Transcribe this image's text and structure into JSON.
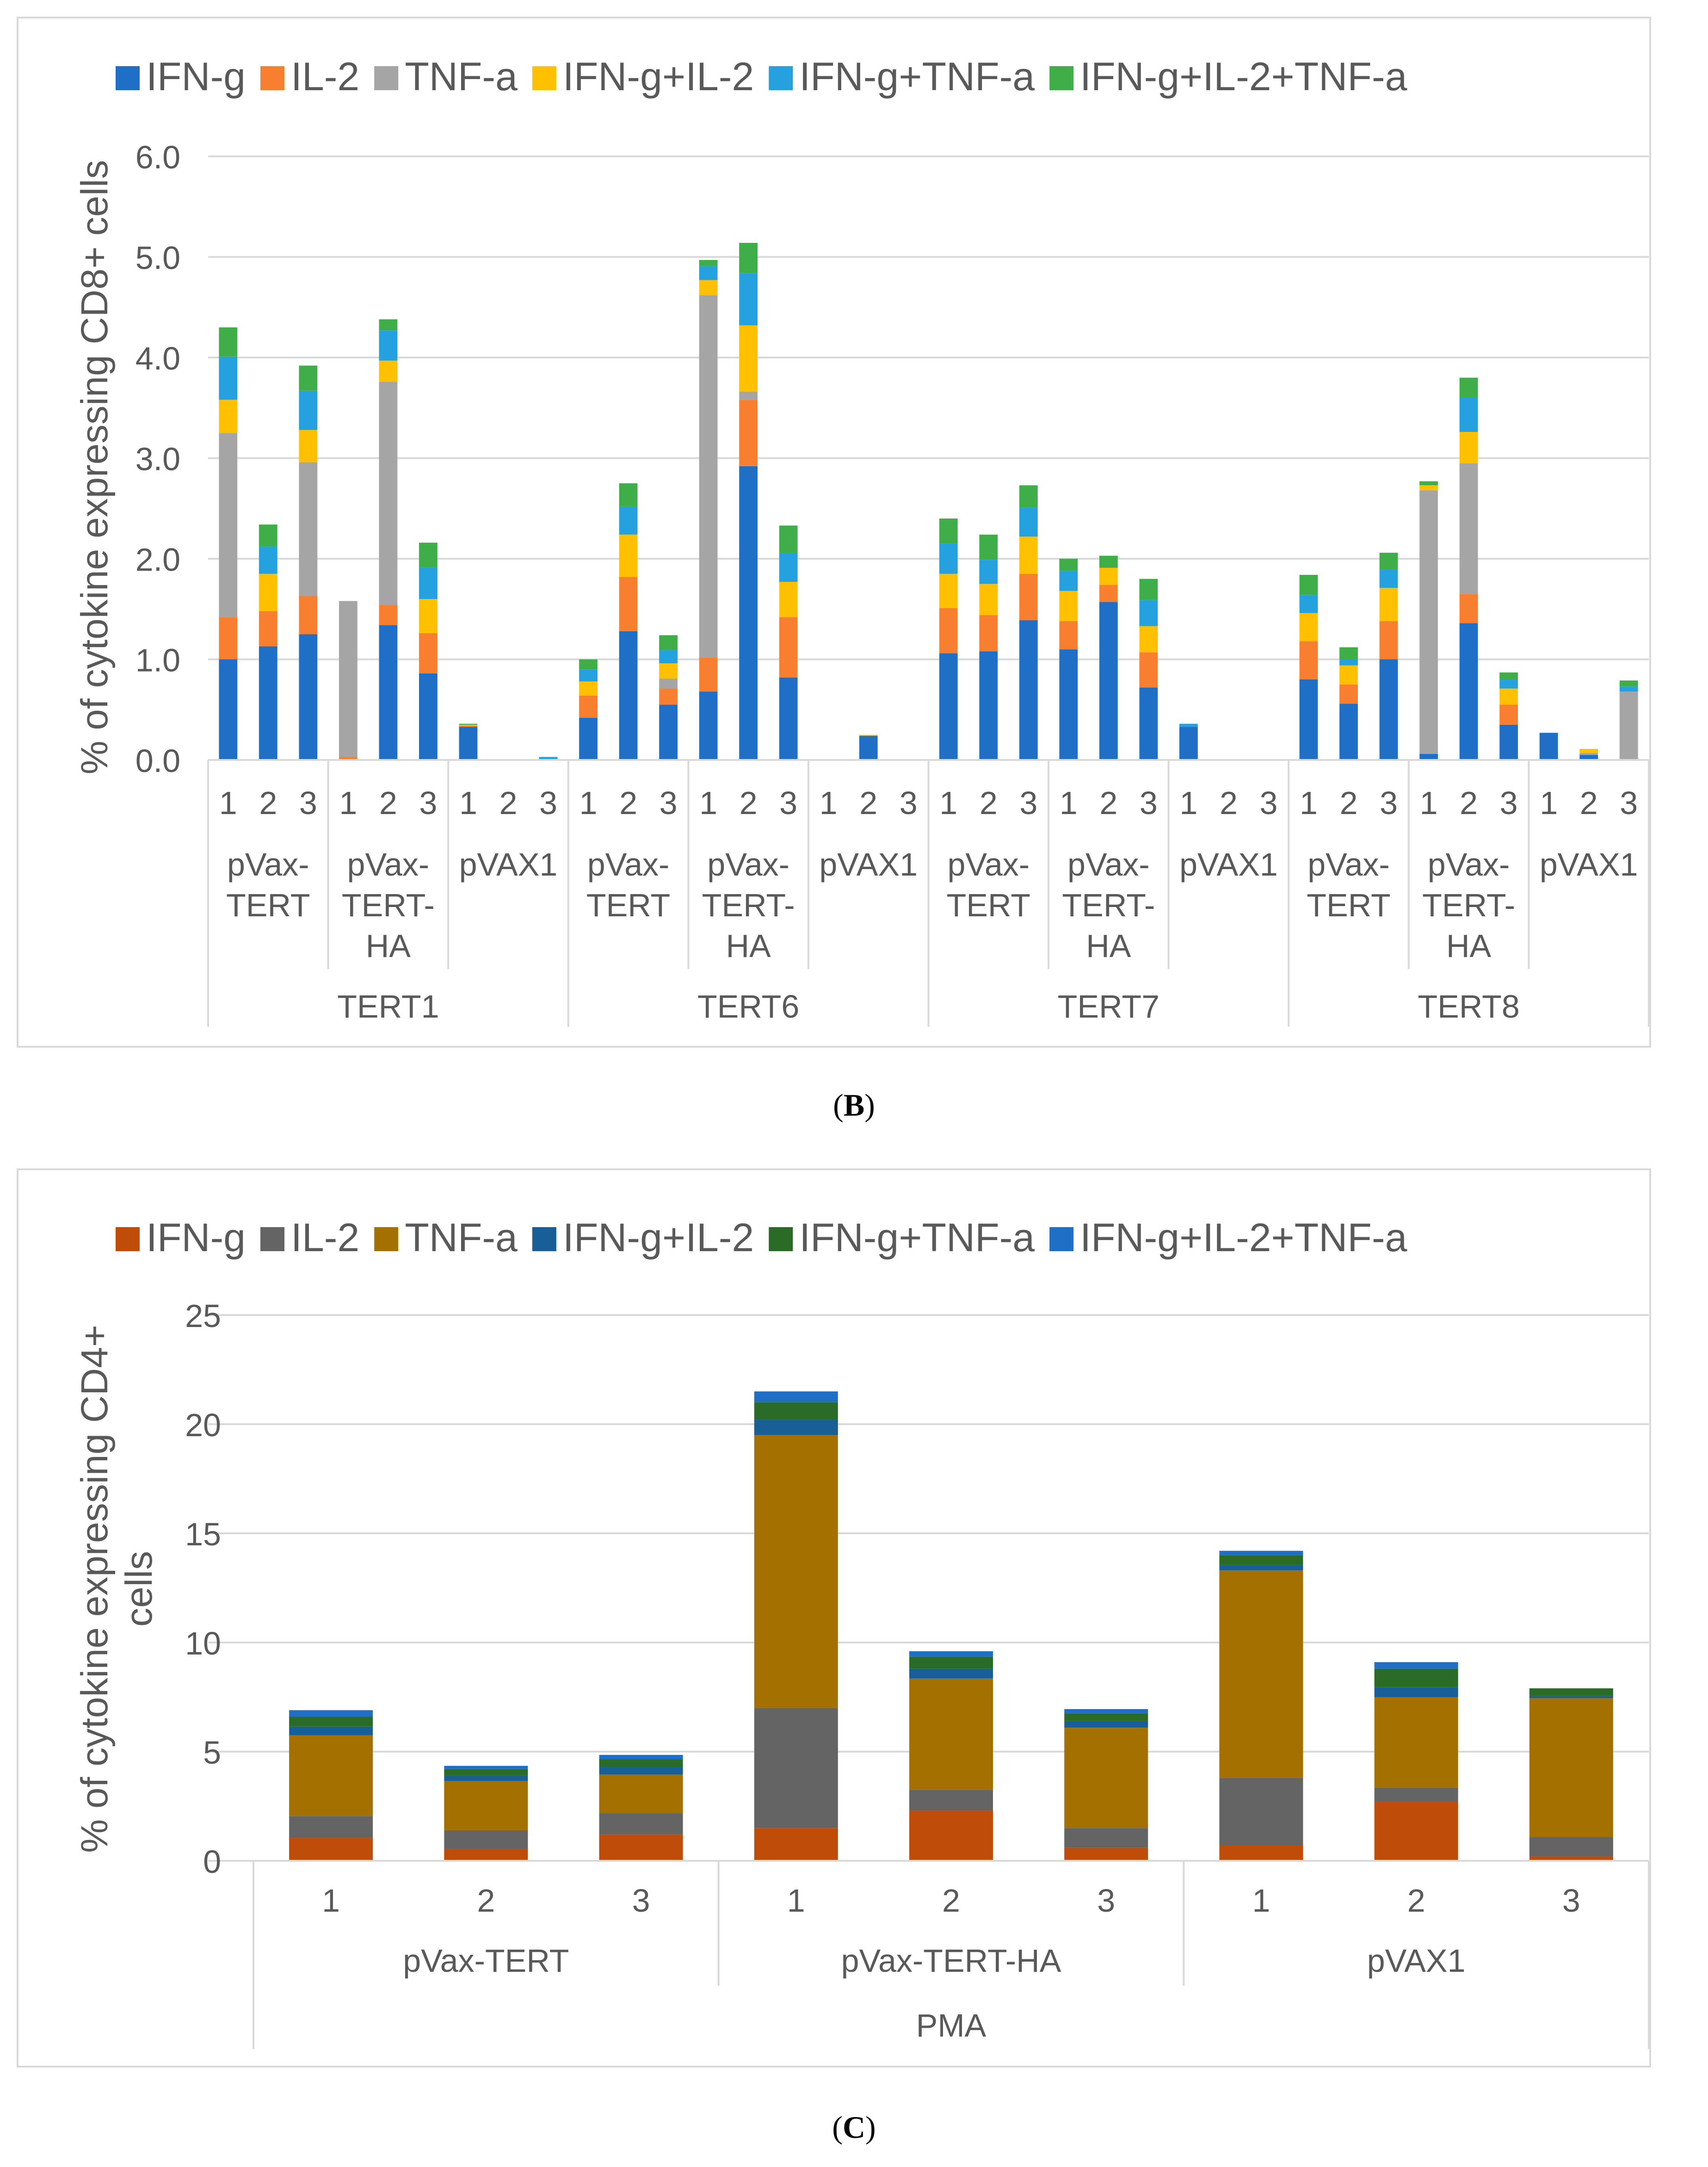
{
  "panels": {
    "b": {
      "label_letter": "B",
      "label_open": "(",
      "label_close": ")"
    },
    "c": {
      "label_letter": "C",
      "label_open": "(",
      "label_close": ")"
    }
  },
  "chart_data": [
    {
      "type": "bar",
      "stacked": true,
      "title": "",
      "ylabel": "% of cytokine expressing CD8+ cells",
      "xlabel": "",
      "ylim": [
        0,
        6
      ],
      "yticks": [
        "0.0",
        "1.0",
        "2.0",
        "3.0",
        "4.0",
        "5.0",
        "6.0"
      ],
      "grid": true,
      "legend_position": "top",
      "legend": [
        "IFN-g",
        "IL-2",
        "TNF-a",
        "IFN-g+IL-2",
        "IFN-g+TNF-a",
        "IFN-g+IL-2+TNF-a"
      ],
      "colors": [
        "#1F6FC6",
        "#F77F2F",
        "#A5A5A5",
        "#FFC000",
        "#24A1DE",
        "#3FAE49"
      ],
      "categories": [
        "1",
        "2",
        "3",
        "1",
        "2",
        "3",
        "1",
        "2",
        "3",
        "1",
        "2",
        "3",
        "1",
        "2",
        "3",
        "1",
        "2",
        "3",
        "1",
        "2",
        "3",
        "1",
        "2",
        "3",
        "1",
        "2",
        "3",
        "1",
        "2",
        "3",
        "1",
        "2",
        "3",
        "1",
        "2",
        "3"
      ],
      "groups_level1": [
        {
          "label": "pVax-TERT",
          "lines": [
            "pVax-",
            "TERT"
          ],
          "span": 3
        },
        {
          "label": "pVax-TERT-HA",
          "lines": [
            "pVax-",
            "TERT-",
            "HA"
          ],
          "span": 3
        },
        {
          "label": "pVAX1",
          "lines": [
            "pVAX1"
          ],
          "span": 3
        },
        {
          "label": "pVax-TERT",
          "lines": [
            "pVax-",
            "TERT"
          ],
          "span": 3
        },
        {
          "label": "pVax-TERT-HA",
          "lines": [
            "pVax-",
            "TERT-",
            "HA"
          ],
          "span": 3
        },
        {
          "label": "pVAX1",
          "lines": [
            "pVAX1"
          ],
          "span": 3
        },
        {
          "label": "pVax-TERT",
          "lines": [
            "pVax-",
            "TERT"
          ],
          "span": 3
        },
        {
          "label": "pVax-TERT-HA",
          "lines": [
            "pVax-",
            "TERT-",
            "HA"
          ],
          "span": 3
        },
        {
          "label": "pVAX1",
          "lines": [
            "pVAX1"
          ],
          "span": 3
        },
        {
          "label": "pVax-TERT",
          "lines": [
            "pVax-",
            "TERT"
          ],
          "span": 3
        },
        {
          "label": "pVax-TERT-HA",
          "lines": [
            "pVax-",
            "TERT-",
            "HA"
          ],
          "span": 3
        },
        {
          "label": "pVAX1",
          "lines": [
            "pVAX1"
          ],
          "span": 3
        }
      ],
      "groups_level2": [
        {
          "label": "TERT1",
          "span": 9
        },
        {
          "label": "TERT6",
          "span": 9
        },
        {
          "label": "TERT7",
          "span": 9
        },
        {
          "label": "TERT8",
          "span": 9
        }
      ],
      "series": [
        {
          "name": "IFN-g",
          "values": [
            1.0,
            1.13,
            1.25,
            0.0,
            1.34,
            0.86,
            0.33,
            0.0,
            0.0,
            0.42,
            1.28,
            0.55,
            0.68,
            2.92,
            0.82,
            0.0,
            0.24,
            0.0,
            1.06,
            1.08,
            1.39,
            1.1,
            1.57,
            0.72,
            0.33,
            0.0,
            0.0,
            0.8,
            0.56,
            1.0,
            0.06,
            1.36,
            0.35,
            0.27,
            0.05,
            0.0
          ]
        },
        {
          "name": "IL-2",
          "values": [
            0.42,
            0.35,
            0.38,
            0.03,
            0.2,
            0.4,
            0.01,
            0.0,
            0.0,
            0.22,
            0.54,
            0.16,
            0.34,
            0.66,
            0.6,
            0.0,
            0.0,
            0.0,
            0.45,
            0.36,
            0.46,
            0.28,
            0.17,
            0.35,
            0.0,
            0.0,
            0.0,
            0.38,
            0.19,
            0.38,
            0.0,
            0.29,
            0.2,
            0.0,
            0.0,
            0.0
          ]
        },
        {
          "name": "TNF-a",
          "values": [
            1.83,
            0.0,
            1.33,
            1.55,
            2.22,
            0.0,
            0.0,
            0.0,
            0.0,
            0.0,
            0.0,
            0.1,
            3.6,
            0.08,
            0.0,
            0.0,
            0.0,
            0.0,
            0.0,
            0.0,
            0.0,
            0.0,
            0.0,
            0.0,
            0.0,
            0.0,
            0.0,
            0.0,
            0.0,
            0.0,
            2.62,
            1.3,
            0.0,
            0.0,
            0.02,
            0.68
          ]
        },
        {
          "name": "IFN-g+IL-2",
          "values": [
            0.33,
            0.37,
            0.32,
            0.0,
            0.21,
            0.34,
            0.01,
            0.0,
            0.0,
            0.14,
            0.42,
            0.15,
            0.15,
            0.66,
            0.35,
            0.0,
            0.01,
            0.0,
            0.34,
            0.31,
            0.37,
            0.3,
            0.17,
            0.26,
            0.0,
            0.0,
            0.0,
            0.28,
            0.19,
            0.33,
            0.05,
            0.31,
            0.16,
            0.0,
            0.04,
            0.0
          ]
        },
        {
          "name": "IFN-g+TNF-a",
          "values": [
            0.43,
            0.27,
            0.39,
            0.0,
            0.3,
            0.31,
            0.0,
            0.0,
            0.03,
            0.12,
            0.28,
            0.13,
            0.14,
            0.52,
            0.29,
            0.0,
            0.0,
            0.0,
            0.3,
            0.24,
            0.29,
            0.2,
            0.0,
            0.26,
            0.03,
            0.0,
            0.0,
            0.18,
            0.06,
            0.18,
            0.0,
            0.34,
            0.09,
            0.0,
            0.0,
            0.05
          ]
        },
        {
          "name": "IFN-g+IL-2+TNF-a",
          "values": [
            0.29,
            0.22,
            0.25,
            0.0,
            0.11,
            0.25,
            0.01,
            0.0,
            0.0,
            0.1,
            0.23,
            0.15,
            0.06,
            0.3,
            0.27,
            0.0,
            0.0,
            0.0,
            0.25,
            0.25,
            0.22,
            0.12,
            0.12,
            0.21,
            0.0,
            0.0,
            0.0,
            0.2,
            0.12,
            0.17,
            0.04,
            0.2,
            0.07,
            0.0,
            0.0,
            0.06
          ]
        }
      ]
    },
    {
      "type": "bar",
      "stacked": true,
      "title": "",
      "ylabel": "% of cytokine expressing CD4+ cells",
      "ylabel_lines": [
        "% of cytokine expressing CD4+",
        "cells"
      ],
      "xlabel": "",
      "ylim": [
        0,
        25
      ],
      "yticks": [
        "0",
        "5",
        "10",
        "15",
        "20",
        "25"
      ],
      "grid": true,
      "legend_position": "top",
      "legend": [
        "IFN-g",
        "IL-2",
        "TNF-a",
        "IFN-g+IL-2",
        "IFN-g+TNF-a",
        "IFN-g+IL-2+TNF-a"
      ],
      "colors": [
        "#C04C0A",
        "#646464",
        "#A47100",
        "#185F97",
        "#2A6B28",
        "#1F6FC6"
      ],
      "categories": [
        "1",
        "2",
        "3",
        "1",
        "2",
        "3",
        "1",
        "2",
        "3"
      ],
      "groups_level1": [
        {
          "label": "pVax-TERT",
          "lines": [
            "pVax-TERT"
          ],
          "span": 3
        },
        {
          "label": "pVax-TERT-HA",
          "lines": [
            "pVax-TERT-HA"
          ],
          "span": 3
        },
        {
          "label": "pVAX1",
          "lines": [
            "pVAX1"
          ],
          "span": 3
        }
      ],
      "groups_level2": [
        {
          "label": "PMA",
          "span": 9
        }
      ],
      "series": [
        {
          "name": "IFN-g",
          "values": [
            1.05,
            0.55,
            1.2,
            1.5,
            2.3,
            0.6,
            0.7,
            2.7,
            0.2
          ]
        },
        {
          "name": "IL-2",
          "values": [
            1.0,
            0.85,
            1.0,
            5.5,
            0.95,
            0.9,
            3.1,
            0.65,
            0.9
          ]
        },
        {
          "name": "TNF-a",
          "values": [
            3.7,
            2.25,
            1.75,
            12.5,
            5.1,
            4.6,
            9.5,
            4.15,
            6.35
          ]
        },
        {
          "name": "IFN-g+IL-2",
          "values": [
            0.4,
            0.25,
            0.35,
            0.7,
            0.45,
            0.3,
            0.25,
            0.45,
            0.1
          ]
        },
        {
          "name": "IFN-g+TNF-a",
          "values": [
            0.45,
            0.3,
            0.35,
            0.8,
            0.55,
            0.35,
            0.45,
            0.85,
            0.35
          ]
        },
        {
          "name": "IFN-g+IL-2+TNF-a",
          "values": [
            0.3,
            0.15,
            0.2,
            0.5,
            0.25,
            0.2,
            0.2,
            0.3,
            0.0
          ]
        }
      ]
    }
  ]
}
